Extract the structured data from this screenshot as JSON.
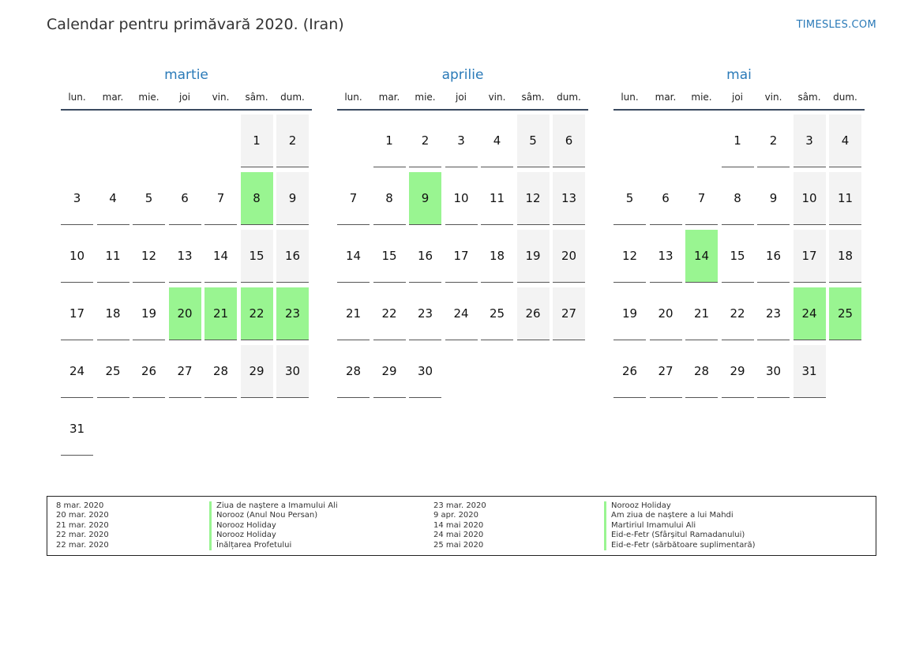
{
  "header": {
    "title": "Calendar pentru primăvară 2020. (Iran)",
    "brand": "TIMESLES.COM"
  },
  "weekdays": [
    "lun.",
    "mar.",
    "mie.",
    "joi",
    "vin.",
    "sâm.",
    "dum."
  ],
  "colors": {
    "accent": "#2a7ab8",
    "holiday": "#99f591",
    "weekend": "#f3f3f3"
  },
  "months": [
    {
      "name": "martie",
      "first_weekday": 6,
      "days": 31,
      "holidays": [
        8,
        20,
        21,
        22,
        23
      ]
    },
    {
      "name": "aprilie",
      "first_weekday": 2,
      "days": 30,
      "holidays": [
        9
      ]
    },
    {
      "name": "mai",
      "first_weekday": 4,
      "days": 31,
      "holidays": [
        14,
        24,
        25
      ]
    }
  ],
  "legend": {
    "left": [
      {
        "date": "8 mar. 2020",
        "name": "Ziua de naștere a Imamului Ali"
      },
      {
        "date": "20 mar. 2020",
        "name": "Norooz (Anul Nou Persan)"
      },
      {
        "date": "21 mar. 2020",
        "name": "Norooz Holiday"
      },
      {
        "date": "22 mar. 2020",
        "name": "Norooz Holiday"
      },
      {
        "date": "22 mar. 2020",
        "name": "Înălțarea Profetului"
      }
    ],
    "right": [
      {
        "date": "23 mar. 2020",
        "name": "Norooz Holiday"
      },
      {
        "date": "9 apr. 2020",
        "name": "Am ziua de naștere a lui Mahdi"
      },
      {
        "date": "14 mai 2020",
        "name": "Martiriul Imamului Ali"
      },
      {
        "date": "24 mai 2020",
        "name": "Eid-e-Fetr (Sfârșitul Ramadanului)"
      },
      {
        "date": "25 mai 2020",
        "name": "Eid-e-Fetr (sărbătoare suplimentară)"
      }
    ]
  }
}
